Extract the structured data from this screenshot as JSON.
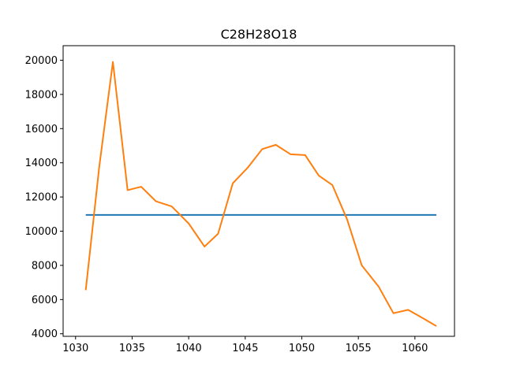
{
  "chart_data": {
    "type": "line",
    "title": "C28H28O18",
    "xlabel": "",
    "ylabel": "",
    "xlim": [
      1028.9,
      1063.5
    ],
    "ylim": [
      3850,
      20850
    ],
    "x_ticks": [
      1030,
      1035,
      1040,
      1045,
      1050,
      1055,
      1060
    ],
    "y_ticks": [
      4000,
      6000,
      8000,
      10000,
      12000,
      14000,
      16000,
      18000,
      20000
    ],
    "grid": false,
    "series": [
      {
        "color": "#1f77b4",
        "x": [
          1030.9,
          1061.9
        ],
        "y": [
          10950,
          10950
        ]
      },
      {
        "color": "#ff7f0e",
        "x": [
          1030.9,
          1032.1,
          1033.3,
          1034.6,
          1035.8,
          1037.1,
          1038.5,
          1040.0,
          1041.4,
          1042.6,
          1043.9,
          1045.2,
          1046.5,
          1047.7,
          1049.0,
          1050.3,
          1051.5,
          1052.7,
          1054.0,
          1055.3,
          1056.8,
          1058.1,
          1059.4,
          1060.6,
          1061.9
        ],
        "y": [
          6550,
          13800,
          19900,
          12400,
          12600,
          11750,
          11450,
          10450,
          9100,
          9850,
          12800,
          13700,
          14800,
          15050,
          14500,
          14450,
          13250,
          12700,
          10700,
          8000,
          6750,
          5200,
          5400,
          4950,
          4450
        ]
      }
    ]
  }
}
